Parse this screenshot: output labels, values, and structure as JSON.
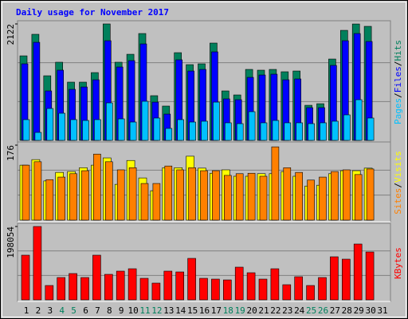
{
  "title": "Daily usage for November 2017",
  "chart_data": [
    {
      "type": "bar",
      "ylim": [
        0,
        2122
      ],
      "yticks": [
        2122
      ],
      "legend_separator": "/",
      "series": [
        {
          "name": "Pages",
          "color": "#00C0FF",
          "values": [
            378,
            145,
            581,
            494,
            378,
            363,
            378,
            683,
            392,
            334,
            712,
            407,
            218,
            378,
            334,
            349,
            697,
            320,
            305,
            523,
            320,
            363,
            320,
            320,
            305,
            320,
            349,
            465,
            741,
            407,
            null
          ]
        },
        {
          "name": "Files",
          "color": "#0000FF",
          "values": [
            1395,
            1787,
            901,
            1279,
            930,
            973,
            1104,
            1816,
            1337,
            1453,
            1758,
            697,
            479,
            1468,
            1264,
            1293,
            1613,
            756,
            741,
            1148,
            1191,
            1206,
            1104,
            1119,
            596,
            596,
            1366,
            1816,
            1947,
            1802,
            null
          ]
        },
        {
          "name": "Hits",
          "color": "#00805C",
          "values": [
            1540,
            1933,
            1177,
            1424,
            1061,
            1061,
            1235,
            2122,
            1424,
            1569,
            1947,
            814,
            625,
            1598,
            1380,
            1395,
            1773,
            901,
            828,
            1293,
            1279,
            1293,
            1250,
            1264,
            639,
            668,
            1482,
            2005,
            2121,
            2078,
            null
          ]
        }
      ]
    },
    {
      "type": "bar",
      "ylim": [
        0,
        176
      ],
      "yticks": [
        176
      ],
      "legend_separator": "/",
      "series": [
        {
          "name": "Sites",
          "color": "#FF8000",
          "values": [
            129,
            137,
            95,
            101,
            109,
            116,
            155,
            137,
            118,
            123,
            86,
            86,
            127,
            118,
            123,
            116,
            116,
            105,
            109,
            110,
            103,
            172,
            123,
            112,
            94,
            101,
            114,
            118,
            107,
            120,
            null
          ]
        },
        {
          "name": "Visits",
          "color": "#FFFF00",
          "values": [
            129,
            142,
            92,
            112,
            114,
            123,
            129,
            146,
            84,
            140,
            99,
            69,
            123,
            123,
            150,
            122,
            110,
            118,
            103,
            103,
            109,
            109,
            114,
            103,
            80,
            82,
            109,
            116,
            116,
            122,
            null
          ]
        }
      ]
    },
    {
      "type": "bar",
      "ylim": [
        0,
        198054
      ],
      "yticks": [
        198054
      ],
      "categories": [
        "1",
        "2",
        "3",
        "4",
        "5",
        "6",
        "7",
        "8",
        "9",
        "10",
        "11",
        "12",
        "13",
        "14",
        "15",
        "16",
        "17",
        "18",
        "19",
        "20",
        "21",
        "22",
        "23",
        "24",
        "25",
        "26",
        "27",
        "28",
        "29",
        "30",
        "31"
      ],
      "category_colors": [
        "#000000",
        "#000000",
        "#000000",
        "#00805C",
        "#00805C",
        "#000000",
        "#000000",
        "#000000",
        "#000000",
        "#000000",
        "#00805C",
        "#00805C",
        "#000000",
        "#000000",
        "#000000",
        "#000000",
        "#000000",
        "#00805C",
        "#00805C",
        "#000000",
        "#000000",
        "#000000",
        "#000000",
        "#000000",
        "#00805C",
        "#00805C",
        "#000000",
        "#000000",
        "#000000",
        "#000000",
        "#000000"
      ],
      "series": [
        {
          "name": "KBytes",
          "color": "#FF0000",
          "values": [
            120568,
            198054,
            38754,
            60284,
            71049,
            60284,
            120568,
            68896,
            77508,
            83967,
            58131,
            45213,
            77508,
            75355,
            111956,
            58131,
            55978,
            53825,
            88273,
            73202,
            55978,
            83967,
            40907,
            62437,
            38754,
            60284,
            116262,
            109803,
            150710,
            129180,
            null
          ]
        }
      ]
    }
  ]
}
